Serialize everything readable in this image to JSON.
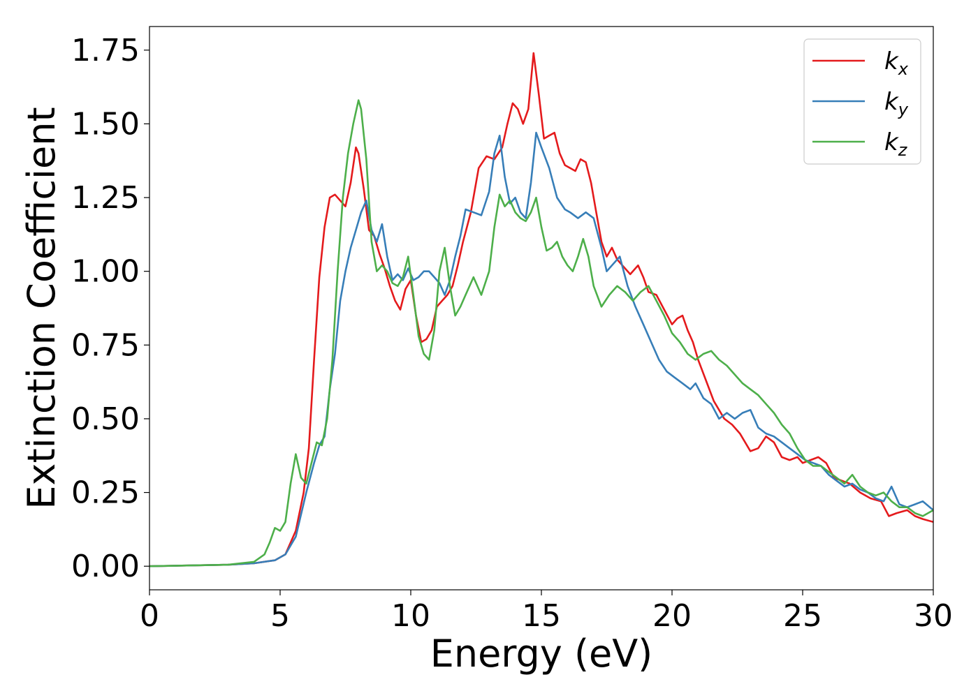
{
  "chart_data": {
    "type": "line",
    "xlabel": "Energy (eV)",
    "ylabel": "Extinction Coefficient",
    "xlim": [
      0,
      30
    ],
    "ylim": [
      -0.08,
      1.83
    ],
    "xticks": [
      0,
      5,
      10,
      15,
      20,
      25,
      30
    ],
    "xtick_labels": [
      "0",
      "5",
      "10",
      "15",
      "20",
      "25",
      "30"
    ],
    "yticks": [
      0,
      0.25,
      0.5,
      0.75,
      1.0,
      1.25,
      1.5,
      1.75
    ],
    "ytick_labels": [
      "0.00",
      "0.25",
      "0.50",
      "0.75",
      "1.00",
      "1.25",
      "1.50",
      "1.75"
    ],
    "grid": false,
    "legend_position": "top-right",
    "series": [
      {
        "name": "k",
        "subscript": "x",
        "color": "#e41a1c",
        "x": [
          0,
          3,
          4,
          4.8,
          5.2,
          5.6,
          5.9,
          6.1,
          6.3,
          6.5,
          6.7,
          6.9,
          7.1,
          7.3,
          7.5,
          7.7,
          7.9,
          8.0,
          8.2,
          8.4,
          8.6,
          8.8,
          9.0,
          9.2,
          9.4,
          9.6,
          9.8,
          10.0,
          10.2,
          10.4,
          10.6,
          10.8,
          11.0,
          11.2,
          11.4,
          11.6,
          11.8,
          12.0,
          12.3,
          12.6,
          12.9,
          13.2,
          13.5,
          13.7,
          13.9,
          14.1,
          14.3,
          14.5,
          14.7,
          14.9,
          15.1,
          15.3,
          15.5,
          15.7,
          15.9,
          16.1,
          16.3,
          16.5,
          16.7,
          16.9,
          17.1,
          17.3,
          17.5,
          17.7,
          17.9,
          18.1,
          18.4,
          18.7,
          18.9,
          19.1,
          19.4,
          19.7,
          20.0,
          20.2,
          20.4,
          20.6,
          20.8,
          21.0,
          21.3,
          21.6,
          22.0,
          22.3,
          22.6,
          23.0,
          23.3,
          23.6,
          23.9,
          24.2,
          24.5,
          24.8,
          25.0,
          25.3,
          25.6,
          25.9,
          26.2,
          26.5,
          26.8,
          27.2,
          27.6,
          28.0,
          28.3,
          28.6,
          29.0,
          29.3,
          29.6,
          30.0
        ],
        "y": [
          0,
          0.005,
          0.01,
          0.02,
          0.04,
          0.12,
          0.25,
          0.4,
          0.7,
          0.98,
          1.15,
          1.25,
          1.26,
          1.24,
          1.22,
          1.3,
          1.42,
          1.4,
          1.28,
          1.14,
          1.12,
          1.06,
          1.01,
          0.95,
          0.9,
          0.87,
          0.94,
          0.97,
          0.85,
          0.76,
          0.77,
          0.8,
          0.88,
          0.9,
          0.92,
          0.95,
          1.02,
          1.1,
          1.2,
          1.35,
          1.39,
          1.38,
          1.42,
          1.5,
          1.57,
          1.55,
          1.5,
          1.55,
          1.74,
          1.6,
          1.45,
          1.46,
          1.47,
          1.4,
          1.36,
          1.35,
          1.34,
          1.38,
          1.37,
          1.3,
          1.2,
          1.1,
          1.05,
          1.08,
          1.04,
          1.02,
          0.99,
          1.02,
          0.98,
          0.93,
          0.92,
          0.87,
          0.82,
          0.84,
          0.85,
          0.8,
          0.76,
          0.7,
          0.63,
          0.56,
          0.5,
          0.48,
          0.45,
          0.39,
          0.4,
          0.44,
          0.42,
          0.37,
          0.36,
          0.37,
          0.35,
          0.36,
          0.37,
          0.35,
          0.3,
          0.29,
          0.28,
          0.25,
          0.23,
          0.22,
          0.17,
          0.18,
          0.19,
          0.17,
          0.16,
          0.15
        ]
      },
      {
        "name": "k",
        "subscript": "y",
        "color": "#377eb8",
        "x": [
          0,
          3,
          4,
          4.8,
          5.2,
          5.6,
          6.0,
          6.3,
          6.5,
          6.7,
          6.9,
          7.1,
          7.3,
          7.5,
          7.7,
          7.9,
          8.1,
          8.3,
          8.5,
          8.7,
          8.9,
          9.1,
          9.3,
          9.5,
          9.7,
          9.9,
          10.1,
          10.3,
          10.5,
          10.7,
          10.9,
          11.1,
          11.3,
          11.5,
          11.7,
          11.9,
          12.1,
          12.4,
          12.7,
          13.0,
          13.2,
          13.4,
          13.6,
          13.8,
          14.0,
          14.2,
          14.4,
          14.6,
          14.8,
          15.0,
          15.3,
          15.6,
          15.9,
          16.1,
          16.4,
          16.7,
          17.0,
          17.3,
          17.5,
          17.7,
          18.0,
          18.3,
          18.6,
          18.9,
          19.2,
          19.5,
          19.8,
          20.1,
          20.4,
          20.7,
          20.9,
          21.2,
          21.5,
          21.8,
          22.1,
          22.4,
          22.7,
          23.0,
          23.3,
          23.6,
          23.9,
          24.2,
          24.5,
          24.8,
          25.1,
          25.4,
          25.7,
          26.0,
          26.3,
          26.6,
          26.9,
          27.2,
          27.5,
          27.8,
          28.1,
          28.4,
          28.7,
          29.0,
          29.3,
          29.6,
          30.0
        ],
        "y": [
          0,
          0.005,
          0.01,
          0.02,
          0.04,
          0.1,
          0.25,
          0.35,
          0.41,
          0.44,
          0.6,
          0.72,
          0.9,
          1.0,
          1.08,
          1.14,
          1.2,
          1.24,
          1.14,
          1.1,
          1.16,
          1.05,
          0.97,
          0.99,
          0.97,
          1.01,
          0.97,
          0.98,
          1.0,
          1.0,
          0.98,
          0.96,
          0.92,
          0.97,
          1.05,
          1.12,
          1.21,
          1.2,
          1.19,
          1.27,
          1.4,
          1.46,
          1.32,
          1.23,
          1.25,
          1.2,
          1.18,
          1.3,
          1.47,
          1.42,
          1.35,
          1.25,
          1.21,
          1.2,
          1.18,
          1.2,
          1.18,
          1.08,
          1.0,
          1.02,
          1.05,
          0.95,
          0.88,
          0.82,
          0.76,
          0.7,
          0.66,
          0.64,
          0.62,
          0.6,
          0.62,
          0.57,
          0.55,
          0.5,
          0.52,
          0.5,
          0.52,
          0.53,
          0.47,
          0.45,
          0.44,
          0.42,
          0.4,
          0.38,
          0.36,
          0.35,
          0.34,
          0.31,
          0.29,
          0.27,
          0.28,
          0.26,
          0.25,
          0.23,
          0.22,
          0.27,
          0.21,
          0.2,
          0.21,
          0.22,
          0.19
        ]
      },
      {
        "name": "k",
        "subscript": "z",
        "color": "#4daf4a",
        "x": [
          0,
          3,
          4,
          4.4,
          4.6,
          4.8,
          5.0,
          5.2,
          5.4,
          5.6,
          5.8,
          6.0,
          6.2,
          6.4,
          6.6,
          6.8,
          7.0,
          7.2,
          7.4,
          7.6,
          7.8,
          8.0,
          8.1,
          8.3,
          8.5,
          8.7,
          8.9,
          9.1,
          9.3,
          9.5,
          9.7,
          9.9,
          10.1,
          10.3,
          10.5,
          10.7,
          10.9,
          11.1,
          11.3,
          11.5,
          11.7,
          11.9,
          12.1,
          12.4,
          12.7,
          13.0,
          13.2,
          13.4,
          13.6,
          13.8,
          14.0,
          14.2,
          14.4,
          14.6,
          14.8,
          15.0,
          15.2,
          15.4,
          15.6,
          15.8,
          16.0,
          16.2,
          16.4,
          16.6,
          16.8,
          17.0,
          17.3,
          17.6,
          17.9,
          18.2,
          18.5,
          18.8,
          19.1,
          19.4,
          19.7,
          20.0,
          20.3,
          20.6,
          20.9,
          21.2,
          21.5,
          21.8,
          22.1,
          22.4,
          22.7,
          23.0,
          23.3,
          23.6,
          23.9,
          24.2,
          24.5,
          24.8,
          25.1,
          25.4,
          25.7,
          26.0,
          26.3,
          26.6,
          26.9,
          27.2,
          27.5,
          27.8,
          28.1,
          28.4,
          28.7,
          29.0,
          29.3,
          29.6,
          30.0
        ],
        "y": [
          0,
          0.005,
          0.015,
          0.04,
          0.08,
          0.13,
          0.12,
          0.15,
          0.28,
          0.38,
          0.3,
          0.28,
          0.35,
          0.42,
          0.41,
          0.5,
          0.7,
          1.0,
          1.25,
          1.4,
          1.5,
          1.58,
          1.55,
          1.38,
          1.1,
          1.0,
          1.02,
          1.0,
          0.96,
          0.95,
          0.98,
          1.05,
          0.92,
          0.78,
          0.72,
          0.7,
          0.8,
          1.0,
          1.08,
          0.95,
          0.85,
          0.88,
          0.92,
          0.98,
          0.92,
          1.0,
          1.15,
          1.26,
          1.22,
          1.24,
          1.2,
          1.18,
          1.17,
          1.2,
          1.25,
          1.15,
          1.07,
          1.08,
          1.1,
          1.05,
          1.02,
          1.0,
          1.05,
          1.11,
          1.05,
          0.95,
          0.88,
          0.92,
          0.95,
          0.93,
          0.9,
          0.93,
          0.95,
          0.9,
          0.85,
          0.79,
          0.76,
          0.72,
          0.7,
          0.72,
          0.73,
          0.7,
          0.68,
          0.65,
          0.62,
          0.6,
          0.58,
          0.55,
          0.52,
          0.48,
          0.45,
          0.4,
          0.36,
          0.34,
          0.34,
          0.32,
          0.3,
          0.28,
          0.31,
          0.27,
          0.25,
          0.24,
          0.25,
          0.22,
          0.2,
          0.2,
          0.18,
          0.17,
          0.19
        ]
      }
    ]
  }
}
